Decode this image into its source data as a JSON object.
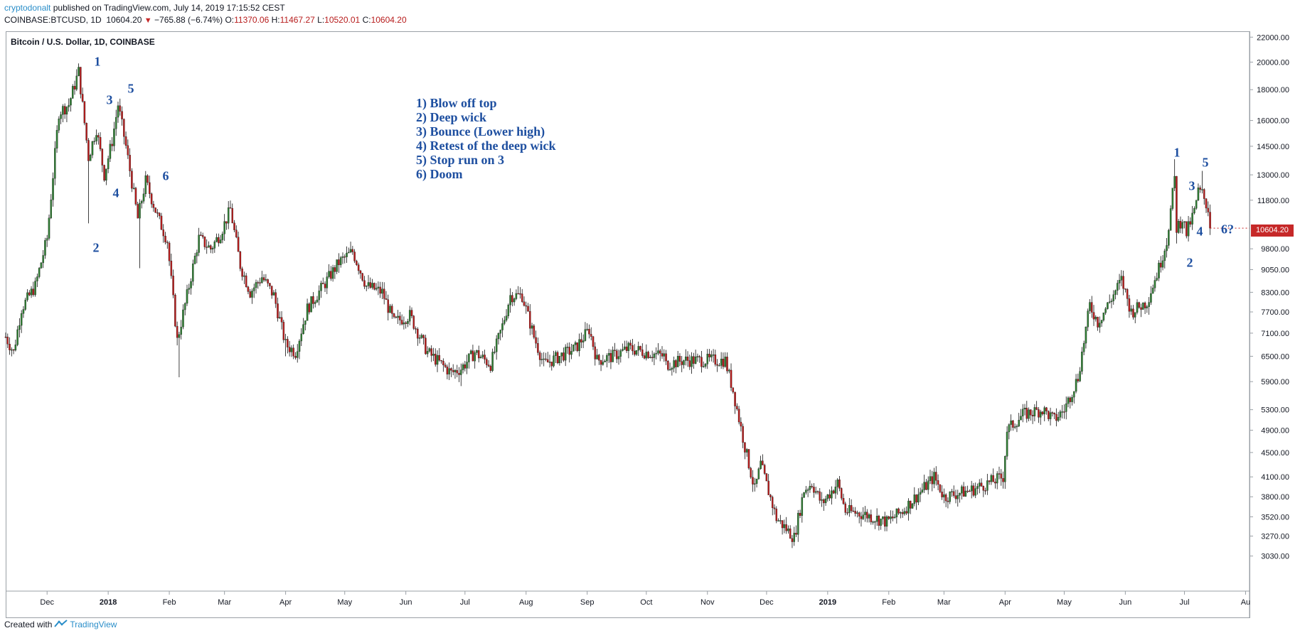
{
  "header": {
    "author": "cryptodonalt",
    "published_text": "published on TradingView.com, July 14, 2019 17:15:52 CEST",
    "symbol_line": "COINBASE:BTCUSD, 1D",
    "last": "10604.20",
    "change": "−765.88 (−6.74%)",
    "o_label": "O:",
    "o_val": "11370.06",
    "h_label": "H:",
    "h_val": "11467.27",
    "l_label": "L:",
    "l_val": "10520.01",
    "c_label": "C:",
    "c_val": "10604.20"
  },
  "legend_title": "Bitcoin / U.S. Dollar, 1D, COINBASE",
  "notes": [
    "1) Blow off top",
    "2) Deep wick",
    "3) Bounce (Lower high)",
    "4) Retest of the deep wick",
    "5) Stop run on 3",
    "6) Doom"
  ],
  "wave_labels_2018": [
    "1",
    "2",
    "3",
    "4",
    "5",
    "6"
  ],
  "wave_labels_2019": [
    "1",
    "2",
    "3",
    "4",
    "5",
    "6?"
  ],
  "price_tag": "10604.20",
  "footer": {
    "created_with": "Created with",
    "brand": "TradingView"
  },
  "colors": {
    "up": "#2e7d32",
    "down": "#b71c1c",
    "wick": "#111111",
    "label": "#1e4fa0",
    "tag": "#c62828"
  },
  "chart_data": {
    "type": "candlestick",
    "y_scale": "log",
    "y_ticks": [
      "22000.00",
      "20000.00",
      "18000.00",
      "16000.00",
      "14500.00",
      "13000.00",
      "11800.00",
      "9800.00",
      "9050.00",
      "8300.00",
      "7700.00",
      "7100.00",
      "6500.00",
      "5900.00",
      "5300.00",
      "4900.00",
      "4500.00",
      "4100.00",
      "3800.00",
      "3520.00",
      "3270.00",
      "3030.00"
    ],
    "ylim": [
      2650,
      22500
    ],
    "x_tick_labels": [
      "Dec",
      "2018",
      "Feb",
      "Mar",
      "Apr",
      "May",
      "Jun",
      "Jul",
      "Aug",
      "Sep",
      "Oct",
      "Nov",
      "Dec",
      "2019",
      "Feb",
      "Mar",
      "Apr",
      "May",
      "Jun",
      "Jul",
      "Au"
    ],
    "xlim": [
      "2017-11-10",
      "2019-08-03"
    ],
    "price_path": [
      [
        "2017-11-10",
        7000
      ],
      [
        "2017-11-14",
        6600
      ],
      [
        "2017-11-18",
        7800
      ],
      [
        "2017-11-25",
        8500
      ],
      [
        "2017-12-01",
        10200
      ],
      [
        "2017-12-07",
        16500
      ],
      [
        "2017-12-12",
        17000
      ],
      [
        "2017-12-17",
        19300
      ],
      [
        "2017-12-22",
        13900
      ],
      [
        "2017-12-26",
        15500
      ],
      [
        "2017-12-30",
        13000
      ],
      [
        "2018-01-03",
        14800
      ],
      [
        "2018-01-06",
        17000
      ],
      [
        "2018-01-10",
        14500
      ],
      [
        "2018-01-16",
        11000
      ],
      [
        "2018-01-20",
        12700
      ],
      [
        "2018-01-26",
        11100
      ],
      [
        "2018-01-31",
        10100
      ],
      [
        "2018-02-05",
        6900
      ],
      [
        "2018-02-10",
        8200
      ],
      [
        "2018-02-16",
        10200
      ],
      [
        "2018-02-22",
        9800
      ],
      [
        "2018-02-27",
        10400
      ],
      [
        "2018-03-04",
        11400
      ],
      [
        "2018-03-09",
        9200
      ],
      [
        "2018-03-14",
        8300
      ],
      [
        "2018-03-20",
        8800
      ],
      [
        "2018-03-26",
        8200
      ],
      [
        "2018-04-01",
        6800
      ],
      [
        "2018-04-06",
        6600
      ],
      [
        "2018-04-12",
        7800
      ],
      [
        "2018-04-20",
        8500
      ],
      [
        "2018-04-28",
        9300
      ],
      [
        "2018-05-05",
        9700
      ],
      [
        "2018-05-12",
        8500
      ],
      [
        "2018-05-20",
        8300
      ],
      [
        "2018-05-26",
        7400
      ],
      [
        "2018-06-03",
        7600
      ],
      [
        "2018-06-12",
        6600
      ],
      [
        "2018-06-24",
        6100
      ],
      [
        "2018-06-29",
        6200
      ],
      [
        "2018-07-06",
        6600
      ],
      [
        "2018-07-14",
        6300
      ],
      [
        "2018-07-20",
        7300
      ],
      [
        "2018-07-24",
        8200
      ],
      [
        "2018-07-30",
        8200
      ],
      [
        "2018-08-05",
        7000
      ],
      [
        "2018-08-10",
        6300
      ],
      [
        "2018-08-18",
        6500
      ],
      [
        "2018-08-26",
        6700
      ],
      [
        "2018-09-02",
        7200
      ],
      [
        "2018-09-06",
        6400
      ],
      [
        "2018-09-14",
        6500
      ],
      [
        "2018-09-22",
        6700
      ],
      [
        "2018-10-01",
        6600
      ],
      [
        "2018-10-10",
        6500
      ],
      [
        "2018-10-11",
        6300
      ],
      [
        "2018-10-20",
        6400
      ],
      [
        "2018-11-01",
        6400
      ],
      [
        "2018-11-10",
        6400
      ],
      [
        "2018-11-14",
        5700
      ],
      [
        "2018-11-20",
        4600
      ],
      [
        "2018-11-25",
        3900
      ],
      [
        "2018-11-28",
        4300
      ],
      [
        "2018-12-06",
        3500
      ],
      [
        "2018-12-15",
        3250
      ],
      [
        "2018-12-20",
        3900
      ],
      [
        "2018-12-24",
        4000
      ],
      [
        "2018-12-29",
        3700
      ],
      [
        "2019-01-06",
        4000
      ],
      [
        "2019-01-10",
        3600
      ],
      [
        "2019-01-20",
        3550
      ],
      [
        "2019-01-31",
        3450
      ],
      [
        "2019-02-08",
        3600
      ],
      [
        "2019-02-18",
        3900
      ],
      [
        "2019-02-24",
        4100
      ],
      [
        "2019-03-01",
        3800
      ],
      [
        "2019-03-15",
        3900
      ],
      [
        "2019-03-31",
        4100
      ],
      [
        "2019-04-02",
        4900
      ],
      [
        "2019-04-10",
        5200
      ],
      [
        "2019-04-20",
        5300
      ],
      [
        "2019-04-26",
        5100
      ],
      [
        "2019-05-01",
        5300
      ],
      [
        "2019-05-08",
        6000
      ],
      [
        "2019-05-14",
        7900
      ],
      [
        "2019-05-18",
        7400
      ],
      [
        "2019-05-24",
        8000
      ],
      [
        "2019-05-30",
        8700
      ],
      [
        "2019-06-04",
        7700
      ],
      [
        "2019-06-12",
        8000
      ],
      [
        "2019-06-18",
        9100
      ],
      [
        "2019-06-22",
        10100
      ],
      [
        "2019-06-26",
        12800
      ],
      [
        "2019-06-27",
        10600
      ],
      [
        "2019-06-30",
        11000
      ],
      [
        "2019-07-02",
        10400
      ],
      [
        "2019-07-06",
        11300
      ],
      [
        "2019-07-08",
        12200
      ],
      [
        "2019-07-10",
        12100
      ],
      [
        "2019-07-13",
        11400
      ],
      [
        "2019-07-14",
        10604.2
      ]
    ],
    "extreme_wicks": [
      [
        "2017-12-17",
        19900
      ],
      [
        "2017-12-22",
        10800
      ],
      [
        "2018-01-06",
        17200
      ],
      [
        "2018-01-17",
        9100
      ],
      [
        "2018-02-06",
        6000
      ],
      [
        "2018-04-01",
        6500
      ],
      [
        "2018-06-29",
        5800
      ],
      [
        "2018-12-15",
        3150
      ],
      [
        "2019-06-26",
        13800
      ],
      [
        "2019-06-27",
        10000
      ],
      [
        "2019-07-10",
        13200
      ]
    ],
    "last_price": 10604.2
  }
}
